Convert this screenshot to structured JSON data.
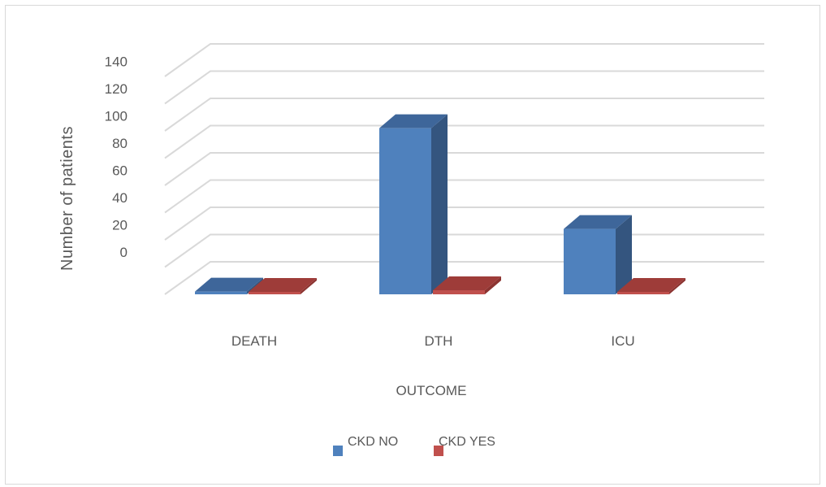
{
  "chart_data": {
    "type": "bar",
    "categories": [
      "DEATH",
      "DTH",
      "ICU"
    ],
    "series": [
      {
        "name": "CKD NO",
        "values": [
          2,
          122,
          48
        ]
      },
      {
        "name": "CKD YES",
        "values": [
          0,
          3,
          0
        ]
      }
    ],
    "xlabel": "OUTCOME",
    "ylabel": "Number of patients",
    "ylim": [
      0,
      140
    ],
    "yticks": [
      0,
      20,
      40,
      60,
      80,
      100,
      120,
      140
    ],
    "grid": true,
    "legend": "bottom",
    "colors": {
      "CKD NO": {
        "front": "#4f81bd",
        "side": "#34557f",
        "top": "#3e669a"
      },
      "CKD YES": {
        "front": "#c0504d",
        "side": "#8c3431",
        "top": "#9e3c39"
      },
      "grid": "#d9d9d9",
      "text": "#595959"
    }
  }
}
